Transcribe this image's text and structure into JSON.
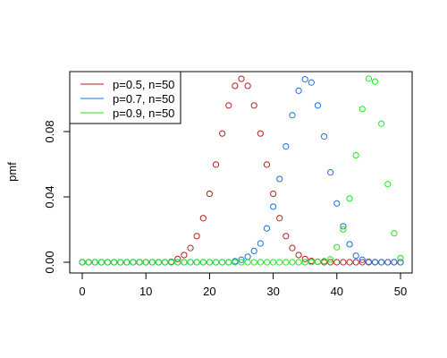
{
  "chart_data": {
    "type": "scatter",
    "title": "",
    "xlabel": "",
    "ylabel": "pmf",
    "xlim": [
      -2,
      52
    ],
    "ylim": [
      -0.006,
      0.116
    ],
    "x_ticks": [
      0,
      10,
      20,
      30,
      40,
      50
    ],
    "x_tick_labels": [
      "0",
      "10",
      "20",
      "30",
      "40",
      "50"
    ],
    "y_ticks": [
      0,
      0.04,
      0.08
    ],
    "y_tick_labels": [
      "0.00",
      "0.04",
      "0.08"
    ],
    "grid": false,
    "legend_position": "top-left",
    "x": [
      0,
      1,
      2,
      3,
      4,
      5,
      6,
      7,
      8,
      9,
      10,
      11,
      12,
      13,
      14,
      15,
      16,
      17,
      18,
      19,
      20,
      21,
      22,
      23,
      24,
      25,
      26,
      27,
      28,
      29,
      30,
      31,
      32,
      33,
      34,
      35,
      36,
      37,
      38,
      39,
      40,
      41,
      42,
      43,
      44,
      45,
      46,
      47,
      48,
      49,
      50
    ],
    "series": [
      {
        "name": "p=0.5, n=50",
        "color": "#b22222",
        "values": [
          0,
          0,
          0,
          0,
          0,
          0,
          0,
          0,
          0,
          0,
          0,
          0,
          0,
          0,
          0.0003,
          0.002,
          0.0044,
          0.0087,
          0.016,
          0.027,
          0.0419,
          0.0598,
          0.0788,
          0.096,
          0.108,
          0.1123,
          0.108,
          0.096,
          0.0788,
          0.0598,
          0.0419,
          0.027,
          0.016,
          0.0087,
          0.0044,
          0.002,
          0.0008,
          0.0003,
          0,
          0,
          0,
          0,
          0,
          0,
          0,
          0,
          0,
          0,
          0,
          0,
          0
        ]
      },
      {
        "name": "p=0.7, n=50",
        "color": "#1e6fd9",
        "values": [
          0,
          0,
          0,
          0,
          0,
          0,
          0,
          0,
          0,
          0,
          0,
          0,
          0,
          0,
          0,
          0,
          0,
          0,
          0,
          0,
          0,
          0,
          0,
          0,
          0.0006,
          0.0015,
          0.0034,
          0.0069,
          0.0115,
          0.0207,
          0.034,
          0.051,
          0.0709,
          0.09,
          0.105,
          0.112,
          0.11,
          0.096,
          0.077,
          0.055,
          0.036,
          0.022,
          0.011,
          0.004,
          0.0015,
          0.0003,
          0.0001,
          0,
          0,
          0,
          0
        ]
      },
      {
        "name": "p=0.9, n=50",
        "color": "#1ee61e",
        "values": [
          0,
          0,
          0,
          0,
          0,
          0,
          0,
          0,
          0,
          0,
          0,
          0,
          0,
          0,
          0,
          0,
          0,
          0,
          0,
          0,
          0,
          0,
          0,
          0,
          0,
          0,
          0,
          0,
          0,
          0,
          0,
          0,
          0,
          0,
          0,
          0,
          0.0001,
          0.0003,
          0.0007,
          0.0017,
          0.0092,
          0.0201,
          0.039,
          0.0655,
          0.0938,
          0.1124,
          0.1106,
          0.0848,
          0.0478,
          0.0177,
          0.0025
        ]
      }
    ]
  }
}
